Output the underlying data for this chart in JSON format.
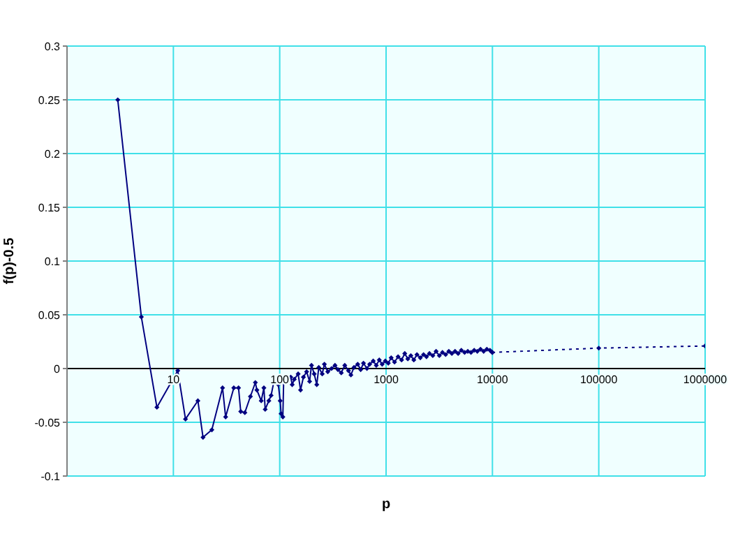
{
  "chart_data": {
    "type": "line",
    "xlabel": "p",
    "ylabel": "f(p)-0.5",
    "log": "x",
    "grid": true,
    "marker": "diamond",
    "legend": false,
    "xlim": [
      1,
      1000000
    ],
    "xticks": [
      {
        "value": 1,
        "label": null
      },
      10,
      100,
      1000,
      10000,
      100000,
      1000000
    ],
    "ylim": [
      -0.1,
      0.3
    ],
    "yticks": [
      -0.1,
      -0.05,
      0,
      0.05,
      0.1,
      0.15,
      0.2,
      0.25,
      0.3
    ],
    "series": [
      {
        "color": "#000080",
        "line_style": "solid",
        "x": [
          3,
          5,
          7,
          11,
          13,
          17,
          19,
          23,
          29,
          31,
          37,
          41,
          43,
          47,
          53,
          59,
          61,
          67,
          71,
          73,
          79,
          83,
          89,
          97,
          101,
          103,
          107,
          109,
          113,
          127,
          131,
          137,
          149,
          157,
          167,
          179,
          191,
          199,
          211,
          223,
          233,
          251,
          263,
          283,
          307,
          331,
          353,
          379,
          409,
          443,
          467,
          499,
          541,
          577,
          613,
          661,
          701,
          757,
          809,
          863,
          919,
          983,
          1049,
          1117,
          1201,
          1297,
          1399,
          1499,
          1601,
          1709,
          1823,
          1951,
          2099,
          2251,
          2399,
          2557,
          2749,
          2953,
          3167,
          3389,
          3631,
          3889,
          4153,
          4451,
          4759,
          5101,
          5477,
          5867,
          6287,
          6737,
          7211,
          7727,
          8273,
          8863,
          9473,
          9973
        ],
        "values": [
          0.25,
          0.048,
          -0.036,
          -0.002,
          -0.047,
          -0.03,
          -0.064,
          -0.057,
          -0.018,
          -0.045,
          -0.018,
          -0.018,
          -0.04,
          -0.041,
          -0.026,
          -0.013,
          -0.02,
          -0.03,
          -0.018,
          -0.038,
          -0.03,
          -0.025,
          -0.01,
          -0.015,
          -0.03,
          -0.042,
          -0.045,
          -0.01,
          -0.012,
          -0.008,
          -0.015,
          -0.01,
          -0.005,
          -0.02,
          -0.008,
          -0.003,
          -0.012,
          0.003,
          -0.005,
          -0.015,
          0.001,
          -0.005,
          0.004,
          -0.003,
          0.0,
          0.003,
          -0.001,
          -0.004,
          0.003,
          -0.002,
          -0.006,
          0.001,
          0.004,
          -0.001,
          0.005,
          0.0,
          0.004,
          0.007,
          0.003,
          0.008,
          0.004,
          0.007,
          0.005,
          0.01,
          0.006,
          0.011,
          0.008,
          0.014,
          0.009,
          0.012,
          0.008,
          0.013,
          0.01,
          0.013,
          0.011,
          0.014,
          0.012,
          0.016,
          0.012,
          0.015,
          0.013,
          0.016,
          0.014,
          0.016,
          0.014,
          0.017,
          0.015,
          0.016,
          0.015,
          0.017,
          0.016,
          0.018,
          0.016,
          0.018,
          0.017,
          0.015
        ]
      },
      {
        "color": "#000080",
        "line_style": "dotted",
        "x": [
          9973,
          100000,
          1000000
        ],
        "values": [
          0.015,
          0.019,
          0.021
        ]
      }
    ]
  }
}
